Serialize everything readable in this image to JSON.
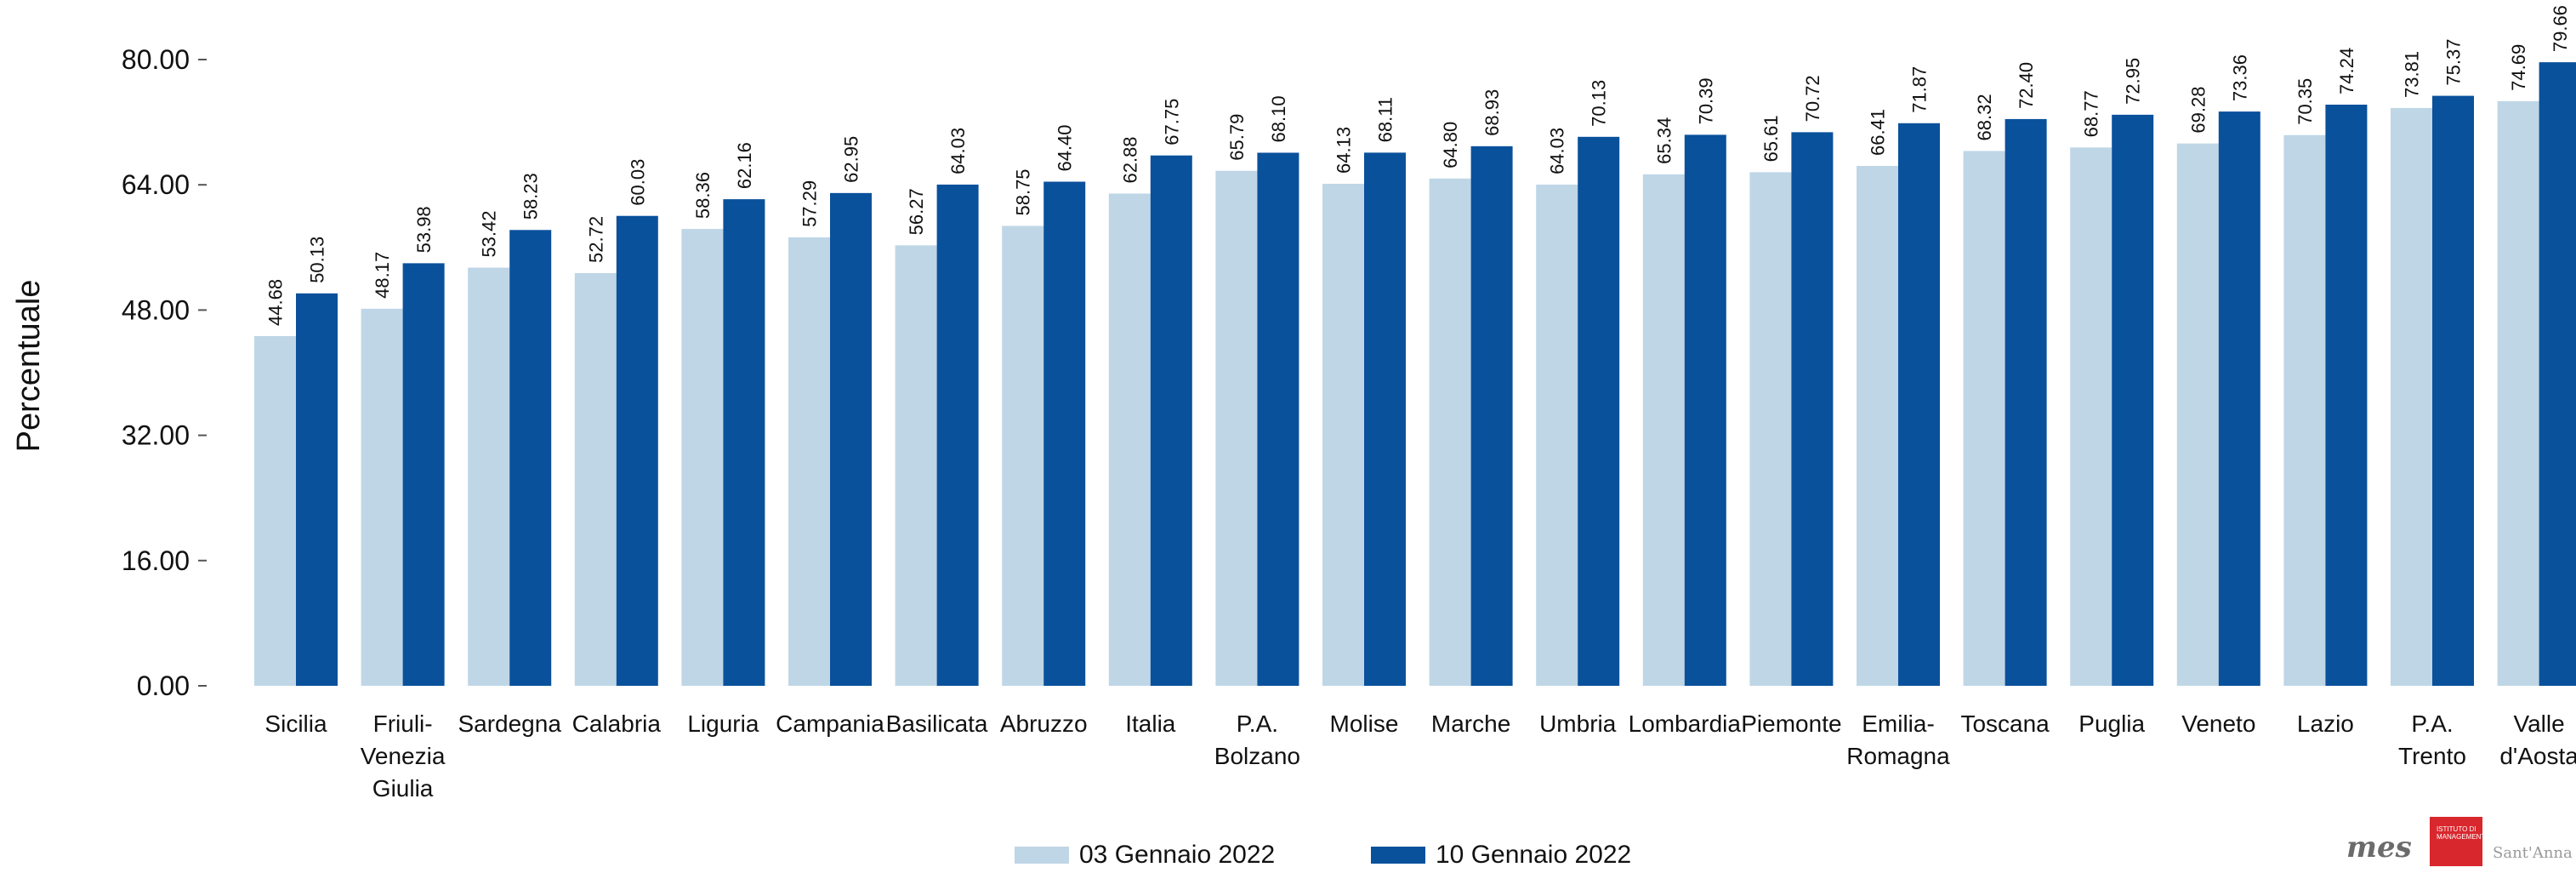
{
  "chart_data": {
    "type": "bar",
    "ylabel": "Percentuale",
    "ylim": [
      0,
      80
    ],
    "y_ticks": [
      "0.00",
      "16.00",
      "32.00",
      "48.00",
      "64.00",
      "80.00"
    ],
    "categories": [
      [
        "Sicilia"
      ],
      [
        "Friuli-",
        "Venezia",
        "Giulia"
      ],
      [
        "Sardegna"
      ],
      [
        "Calabria"
      ],
      [
        "Liguria"
      ],
      [
        "Campania"
      ],
      [
        "Basilicata"
      ],
      [
        "Abruzzo"
      ],
      [
        "Italia"
      ],
      [
        "P.A.",
        "Bolzano"
      ],
      [
        "Molise"
      ],
      [
        "Marche"
      ],
      [
        "Umbria"
      ],
      [
        "Lombardia"
      ],
      [
        "Piemonte"
      ],
      [
        "Emilia-",
        "Romagna"
      ],
      [
        "Toscana"
      ],
      [
        "Puglia"
      ],
      [
        "Veneto"
      ],
      [
        "Lazio"
      ],
      [
        "P.A.",
        "Trento"
      ],
      [
        "Valle",
        "d'Aosta"
      ]
    ],
    "series": [
      {
        "name": "03 Gennaio 2022",
        "color": "#bfd6e6",
        "values": [
          44.68,
          48.17,
          53.42,
          52.72,
          58.36,
          57.29,
          56.27,
          58.75,
          62.88,
          65.79,
          64.13,
          64.8,
          64.03,
          65.34,
          65.61,
          66.41,
          68.32,
          68.77,
          69.28,
          70.35,
          73.81,
          74.69
        ]
      },
      {
        "name": "10 Gennaio 2022",
        "color": "#0a519c",
        "values": [
          50.13,
          53.98,
          58.23,
          60.03,
          62.16,
          62.95,
          64.03,
          64.4,
          67.75,
          68.1,
          68.11,
          68.93,
          70.13,
          70.39,
          70.72,
          71.87,
          72.4,
          72.95,
          73.36,
          74.24,
          75.37,
          79.66
        ]
      }
    ],
    "legend_position": "bottom",
    "grid": false
  },
  "logos": {
    "mes": "mes",
    "institute": "ISTITUTO DI MANAGEMENT",
    "santanna": "Sant'Anna"
  }
}
